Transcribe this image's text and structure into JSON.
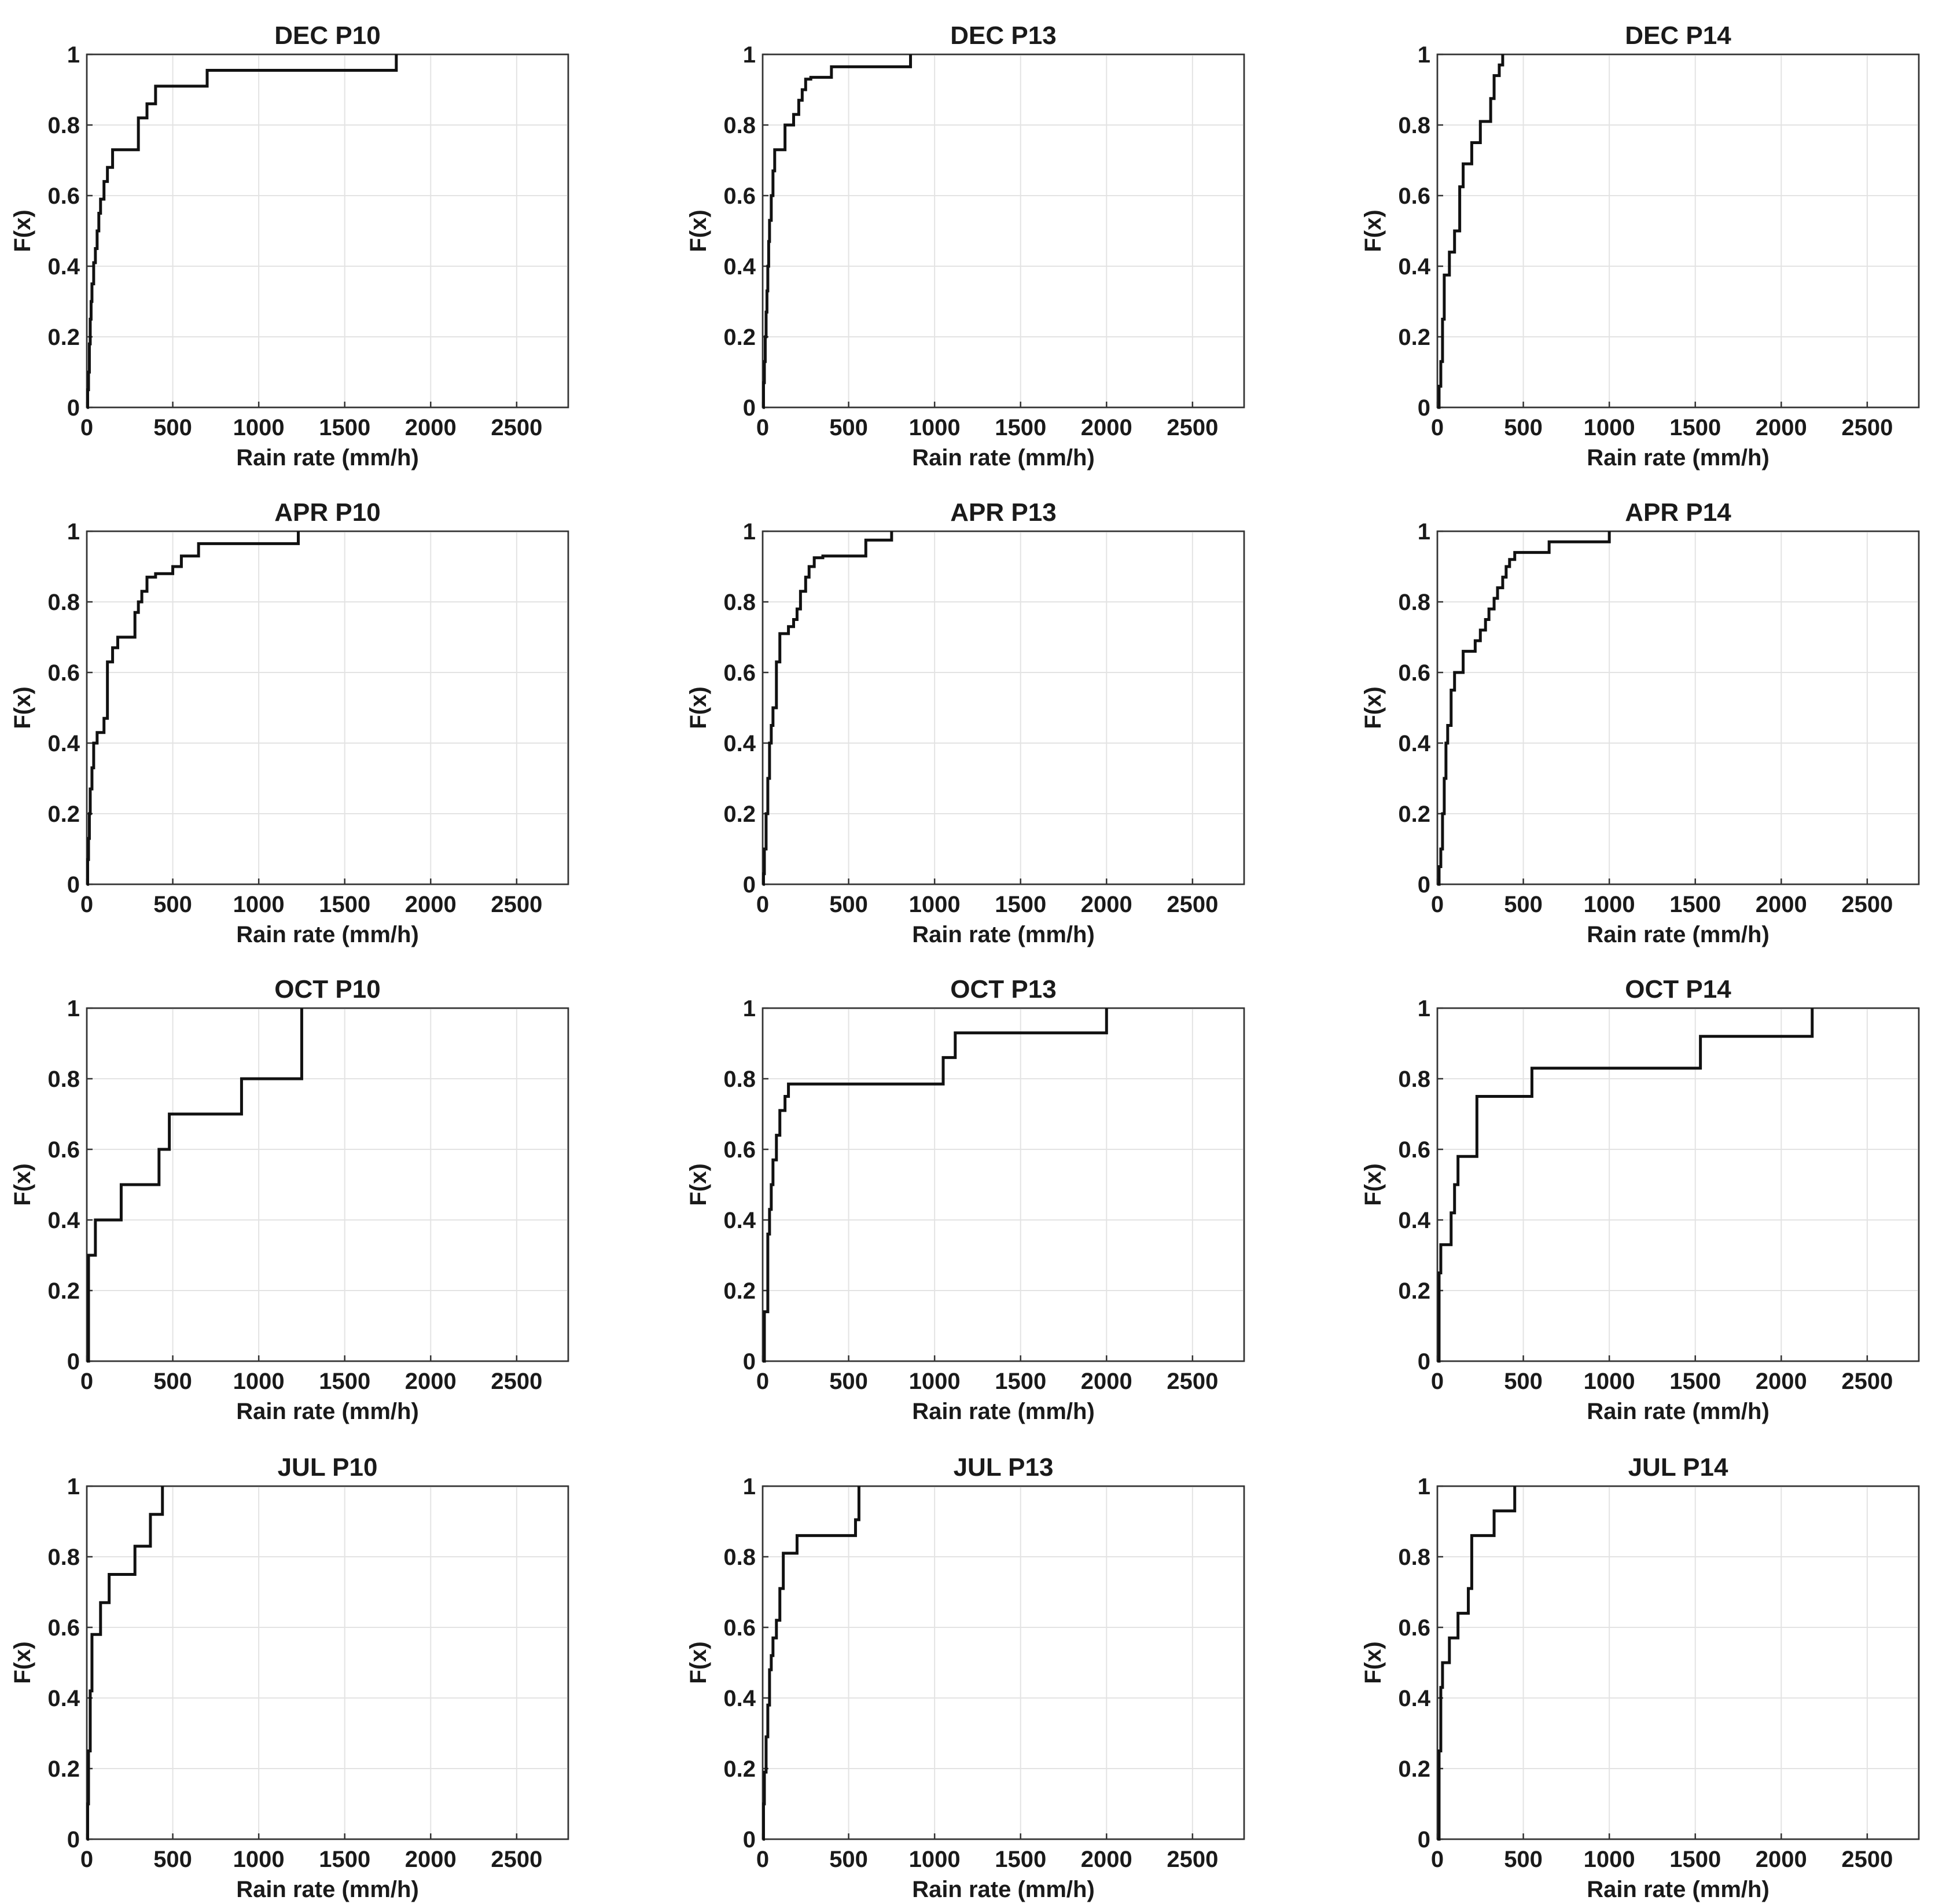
{
  "chart_data": [
    {
      "type": "line",
      "title": "DEC P10",
      "xlabel": "Rain rate (mm/h)",
      "ylabel": "F(x)",
      "xlim": [
        0,
        2800
      ],
      "ylim": [
        0,
        1
      ],
      "grid": true,
      "x": [
        0,
        5,
        10,
        15,
        20,
        25,
        30,
        40,
        50,
        60,
        70,
        80,
        100,
        120,
        150,
        300,
        350,
        400,
        700,
        1800
      ],
      "y": [
        0,
        0.05,
        0.1,
        0.18,
        0.25,
        0.3,
        0.35,
        0.41,
        0.45,
        0.5,
        0.55,
        0.59,
        0.64,
        0.68,
        0.73,
        0.82,
        0.86,
        0.91,
        0.955,
        1.0
      ]
    },
    {
      "type": "line",
      "title": "DEC P13",
      "xlabel": "Rain rate (mm/h)",
      "ylabel": "F(x)",
      "xlim": [
        0,
        2800
      ],
      "ylim": [
        0,
        1
      ],
      "grid": true,
      "x": [
        0,
        5,
        10,
        15,
        20,
        25,
        30,
        35,
        40,
        50,
        60,
        70,
        130,
        180,
        210,
        230,
        250,
        280,
        400,
        860
      ],
      "y": [
        0,
        0.07,
        0.13,
        0.2,
        0.27,
        0.33,
        0.4,
        0.47,
        0.53,
        0.6,
        0.67,
        0.73,
        0.8,
        0.83,
        0.87,
        0.9,
        0.93,
        0.935,
        0.965,
        1.0
      ]
    },
    {
      "type": "line",
      "title": "DEC P14",
      "xlabel": "Rain rate (mm/h)",
      "ylabel": "F(x)",
      "xlim": [
        0,
        2800
      ],
      "ylim": [
        0,
        1
      ],
      "grid": true,
      "x": [
        0,
        10,
        20,
        30,
        40,
        70,
        100,
        130,
        150,
        200,
        250,
        310,
        330,
        360,
        380
      ],
      "y": [
        0,
        0.06,
        0.13,
        0.25,
        0.375,
        0.44,
        0.5,
        0.625,
        0.69,
        0.75,
        0.81,
        0.875,
        0.94,
        0.97,
        1.0
      ]
    },
    {
      "type": "line",
      "title": "APR P10",
      "xlabel": "Rain rate (mm/h)",
      "ylabel": "F(x)",
      "xlim": [
        0,
        2800
      ],
      "ylim": [
        0,
        1
      ],
      "grid": true,
      "x": [
        0,
        5,
        10,
        15,
        20,
        30,
        40,
        60,
        100,
        120,
        150,
        180,
        280,
        300,
        320,
        350,
        400,
        500,
        550,
        650,
        1230
      ],
      "y": [
        0,
        0.07,
        0.13,
        0.2,
        0.27,
        0.33,
        0.4,
        0.43,
        0.47,
        0.63,
        0.67,
        0.7,
        0.77,
        0.8,
        0.83,
        0.87,
        0.88,
        0.9,
        0.93,
        0.965,
        1.0
      ]
    },
    {
      "type": "line",
      "title": "APR P13",
      "xlabel": "Rain rate (mm/h)",
      "ylabel": "F(x)",
      "xlim": [
        0,
        2800
      ],
      "ylim": [
        0,
        1
      ],
      "grid": true,
      "x": [
        0,
        5,
        10,
        20,
        30,
        40,
        50,
        60,
        80,
        100,
        150,
        180,
        200,
        220,
        250,
        270,
        300,
        350,
        600,
        750
      ],
      "y": [
        0,
        0.03,
        0.1,
        0.2,
        0.3,
        0.4,
        0.45,
        0.5,
        0.63,
        0.71,
        0.73,
        0.75,
        0.78,
        0.83,
        0.87,
        0.9,
        0.925,
        0.93,
        0.975,
        1.0
      ]
    },
    {
      "type": "line",
      "title": "APR P14",
      "xlabel": "Rain rate (mm/h)",
      "ylabel": "F(x)",
      "xlim": [
        0,
        2800
      ],
      "ylim": [
        0,
        1
      ],
      "grid": true,
      "x": [
        0,
        10,
        20,
        30,
        40,
        50,
        60,
        80,
        100,
        150,
        220,
        250,
        280,
        300,
        330,
        350,
        380,
        400,
        420,
        450,
        650,
        1000
      ],
      "y": [
        0,
        0.05,
        0.1,
        0.2,
        0.3,
        0.4,
        0.45,
        0.55,
        0.6,
        0.66,
        0.69,
        0.72,
        0.75,
        0.78,
        0.81,
        0.84,
        0.87,
        0.9,
        0.92,
        0.94,
        0.97,
        1.0
      ]
    },
    {
      "type": "line",
      "title": "OCT P10",
      "xlabel": "Rain rate (mm/h)",
      "ylabel": "F(x)",
      "xlim": [
        0,
        2800
      ],
      "ylim": [
        0,
        1
      ],
      "grid": true,
      "x": [
        0,
        10,
        50,
        200,
        420,
        480,
        900,
        1250
      ],
      "y": [
        0,
        0.3,
        0.4,
        0.5,
        0.6,
        0.7,
        0.8,
        1.0
      ]
    },
    {
      "type": "line",
      "title": "OCT P13",
      "xlabel": "Rain rate (mm/h)",
      "ylabel": "F(x)",
      "xlim": [
        0,
        2800
      ],
      "ylim": [
        0,
        1
      ],
      "grid": true,
      "x": [
        0,
        10,
        30,
        40,
        50,
        60,
        80,
        100,
        130,
        150,
        1050,
        1120,
        2000
      ],
      "y": [
        0,
        0.14,
        0.36,
        0.43,
        0.5,
        0.57,
        0.64,
        0.71,
        0.75,
        0.785,
        0.86,
        0.93,
        1.0
      ]
    },
    {
      "type": "line",
      "title": "OCT P14",
      "xlabel": "Rain rate (mm/h)",
      "ylabel": "F(x)",
      "xlim": [
        0,
        2800
      ],
      "ylim": [
        0,
        1
      ],
      "grid": true,
      "x": [
        0,
        10,
        20,
        80,
        100,
        120,
        230,
        550,
        1530,
        2180
      ],
      "y": [
        0,
        0.25,
        0.33,
        0.42,
        0.5,
        0.58,
        0.75,
        0.83,
        0.92,
        1.0
      ]
    },
    {
      "type": "line",
      "title": "JUL P10",
      "xlabel": "Rain rate (mm/h)",
      "ylabel": "F(x)",
      "xlim": [
        0,
        2800
      ],
      "ylim": [
        0,
        1
      ],
      "grid": true,
      "x": [
        0,
        5,
        10,
        20,
        30,
        80,
        130,
        280,
        370,
        440
      ],
      "y": [
        0,
        0.1,
        0.25,
        0.42,
        0.58,
        0.67,
        0.75,
        0.83,
        0.92,
        1.0
      ]
    },
    {
      "type": "line",
      "title": "JUL P13",
      "xlabel": "Rain rate (mm/h)",
      "ylabel": "F(x)",
      "xlim": [
        0,
        2800
      ],
      "ylim": [
        0,
        1
      ],
      "grid": true,
      "x": [
        0,
        5,
        10,
        20,
        30,
        40,
        50,
        60,
        80,
        100,
        120,
        200,
        540,
        560
      ],
      "y": [
        0,
        0.1,
        0.19,
        0.29,
        0.38,
        0.48,
        0.52,
        0.57,
        0.62,
        0.71,
        0.81,
        0.86,
        0.905,
        1.0
      ]
    },
    {
      "type": "line",
      "title": "JUL P14",
      "xlabel": "Rain rate (mm/h)",
      "ylabel": "F(x)",
      "xlim": [
        0,
        2800
      ],
      "ylim": [
        0,
        1
      ],
      "grid": true,
      "x": [
        0,
        10,
        20,
        30,
        70,
        120,
        180,
        200,
        330,
        450
      ],
      "y": [
        0,
        0.25,
        0.43,
        0.5,
        0.57,
        0.64,
        0.71,
        0.86,
        0.93,
        1.0
      ]
    }
  ],
  "x_ticks": [
    0,
    500,
    1000,
    1500,
    2000,
    2500
  ],
  "y_ticks": [
    0,
    0.2,
    0.4,
    0.6,
    0.8,
    1
  ],
  "x_tick_labels": [
    "0",
    "500",
    "1000",
    "1500",
    "2000",
    "2500"
  ],
  "y_tick_labels": [
    "0",
    "0.2",
    "0.4",
    "0.6",
    "0.8",
    "1"
  ],
  "colors": {
    "line": "#111111",
    "grid": "#e3e3e3",
    "axes": "#333333",
    "background": "#ffffff"
  }
}
